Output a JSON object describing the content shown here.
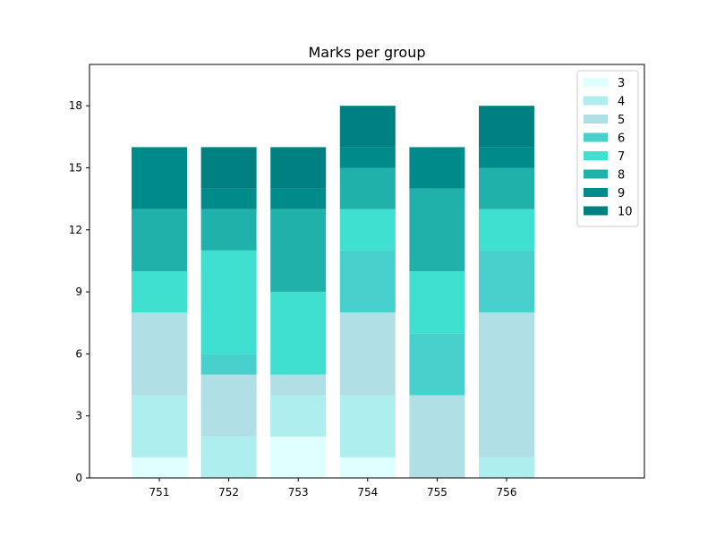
{
  "chart_data": {
    "type": "bar",
    "stacked": true,
    "title": "Marks per group",
    "xlabel": "",
    "ylabel": "",
    "categories": [
      "751",
      "752",
      "753",
      "754",
      "755",
      "756"
    ],
    "ylim": [
      0,
      20
    ],
    "yticks": [
      0,
      3,
      6,
      9,
      12,
      15,
      18
    ],
    "grid": false,
    "legend_position": "top-right",
    "series": [
      {
        "name": "3",
        "color": "#e0ffff",
        "values": [
          1,
          0,
          2,
          1,
          0,
          0
        ]
      },
      {
        "name": "4",
        "color": "#afeeee",
        "values": [
          3,
          2,
          2,
          3,
          0,
          1
        ]
      },
      {
        "name": "5",
        "color": "#b0e0e6",
        "values": [
          4,
          3,
          1,
          4,
          4,
          7
        ]
      },
      {
        "name": "6",
        "color": "#48d1cc",
        "values": [
          0,
          1,
          0,
          3,
          3,
          3
        ]
      },
      {
        "name": "7",
        "color": "#40e0d0",
        "values": [
          2,
          5,
          4,
          2,
          3,
          2
        ]
      },
      {
        "name": "8",
        "color": "#20b2aa",
        "values": [
          3,
          2,
          4,
          2,
          4,
          2
        ]
      },
      {
        "name": "9",
        "color": "#008b8b",
        "values": [
          3,
          1,
          1,
          1,
          2,
          1
        ]
      },
      {
        "name": "10",
        "color": "#008080",
        "values": [
          0,
          2,
          2,
          2,
          0,
          2
        ]
      }
    ]
  }
}
